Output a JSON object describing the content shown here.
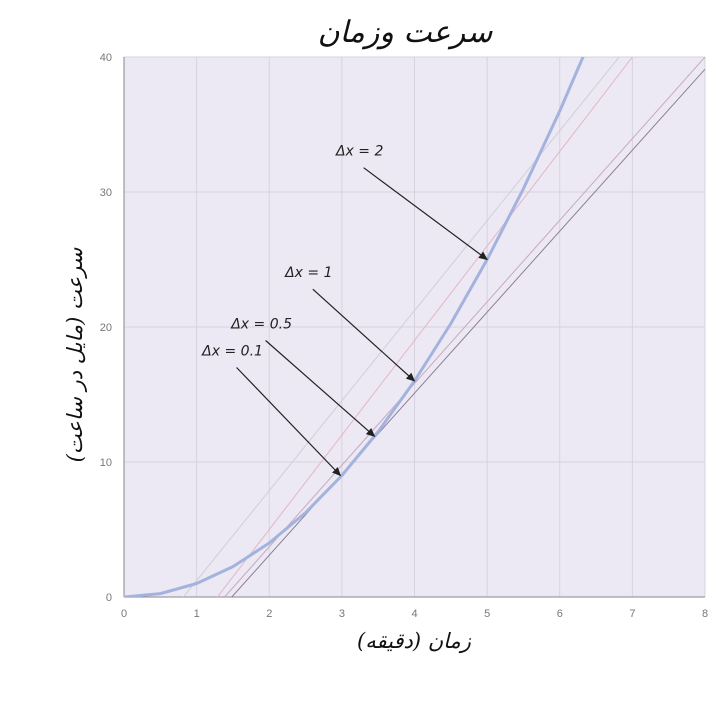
{
  "chart_data": {
    "type": "line",
    "title": "سرعت وزمان",
    "xlabel": "زمان (دقیقه)",
    "ylabel": "سرعت (مایل در ساعت)",
    "xlim": [
      0,
      8
    ],
    "ylim": [
      0,
      40
    ],
    "grid": true,
    "x_ticks": [
      "0",
      "1",
      "2",
      "3",
      "4",
      "5",
      "6",
      "7",
      "8"
    ],
    "y_ticks": [
      "0",
      "10",
      "20",
      "30",
      "40"
    ],
    "colors": {
      "plot_background": "#ece9f4",
      "gridline": "#d6d3df",
      "curve": "#a3b3dd",
      "secant_dx2": "#cfcfd6",
      "secant_dx1": "#e3b5c8",
      "secant_dx05": "#c9a9bd",
      "secant_dx01": "#8c7f96",
      "arrow": "#222222"
    },
    "series": [
      {
        "kind": "curve",
        "x": [
          0,
          0.5,
          1,
          1.5,
          2,
          2.5,
          3,
          3.5,
          4,
          4.5,
          5,
          5.5,
          6,
          6.32
        ],
        "y": [
          0,
          0.25,
          1,
          2.25,
          4,
          6.25,
          9,
          12.25,
          16,
          20.25,
          25,
          30.25,
          36,
          40
        ]
      },
      {
        "kind": "secant",
        "dx": 2,
        "x": [
          0.818,
          6.818
        ],
        "y": [
          0,
          40
        ]
      },
      {
        "kind": "secant",
        "dx": 1,
        "x": [
          1.286,
          7.0
        ],
        "y": [
          0,
          40
        ]
      },
      {
        "kind": "secant",
        "dx": 0.5,
        "x": [
          1.385,
          8.0
        ],
        "y": [
          0,
          40
        ]
      },
      {
        "kind": "secant",
        "dx": 0.1,
        "x": [
          1.484,
          8.0
        ],
        "y": [
          0,
          39.1
        ]
      }
    ],
    "annotations": [
      {
        "text": "Δx = 2",
        "from": [
          3.3,
          31.8
        ],
        "to": [
          5.0,
          25.0
        ]
      },
      {
        "text": "Δx = 1",
        "from": [
          2.6,
          22.8
        ],
        "to": [
          4.0,
          16.0
        ]
      },
      {
        "text": "Δx = 0.5",
        "from": [
          1.95,
          19.0
        ],
        "to": [
          3.45,
          11.9
        ]
      },
      {
        "text": "Δx = 0.1",
        "from": [
          1.55,
          17.0
        ],
        "to": [
          2.98,
          9.0
        ]
      }
    ]
  }
}
